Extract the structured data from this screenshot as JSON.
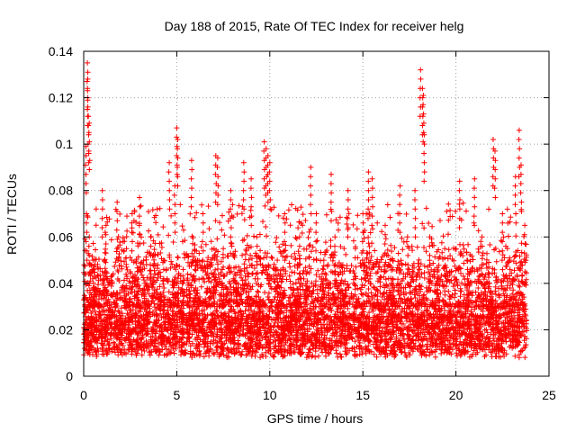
{
  "chart_data": {
    "type": "scatter",
    "title": "Day 188 of 2015, Rate Of TEC Index for receiver helg",
    "xlabel": "GPS time / hours",
    "ylabel": "ROTI / TECUs",
    "xlim": [
      0,
      25
    ],
    "ylim": [
      0,
      0.14
    ],
    "xticks": [
      0,
      5,
      10,
      15,
      20,
      25
    ],
    "yticks": [
      0,
      0.02,
      0.04,
      0.06,
      0.08,
      0.1,
      0.12,
      0.14
    ],
    "xtick_labels": [
      "0",
      "5",
      "10",
      "15",
      "20",
      "25"
    ],
    "ytick_labels": [
      "0",
      "0.02",
      "0.04",
      "0.06",
      "0.08",
      "0.1",
      "0.12",
      "0.14"
    ],
    "grid": true,
    "marker": "+",
    "color": "#ff0000",
    "series": [
      {
        "name": "ROTI",
        "x": [
          0.05,
          0.1,
          0.12,
          0.15,
          0.2,
          0.22,
          0.25,
          0.3,
          0.3,
          0.35,
          0.5,
          0.8,
          1.0,
          1.2,
          1.5,
          1.8,
          2.0,
          2.3,
          2.6,
          3.0,
          3.3,
          3.6,
          4.0,
          4.3,
          4.6,
          4.9,
          5.0,
          5.05,
          5.3,
          5.8,
          6.0,
          6.4,
          6.8,
          7.1,
          7.2,
          7.5,
          7.9,
          8.2,
          8.6,
          9.0,
          9.3,
          9.7,
          9.8,
          9.9,
          10.0,
          10.4,
          10.8,
          11.2,
          11.6,
          12.0,
          12.2,
          12.5,
          12.9,
          13.3,
          13.5,
          13.8,
          14.2,
          14.6,
          15.0,
          15.3,
          15.5,
          15.8,
          16.2,
          16.6,
          17.0,
          17.4,
          17.8,
          18.1,
          18.2,
          18.25,
          18.3,
          18.6,
          19.0,
          19.4,
          19.8,
          20.2,
          20.6,
          21.0,
          21.4,
          21.8,
          22.0,
          22.1,
          22.5,
          22.9,
          23.2,
          23.4,
          23.5,
          23.7
        ],
        "y": [
          0.012,
          0.02,
          0.099,
          0.07,
          0.135,
          0.128,
          0.112,
          0.109,
          0.06,
          0.045,
          0.05,
          0.03,
          0.08,
          0.065,
          0.035,
          0.075,
          0.025,
          0.055,
          0.07,
          0.077,
          0.04,
          0.06,
          0.035,
          0.05,
          0.092,
          0.082,
          0.107,
          0.102,
          0.04,
          0.093,
          0.05,
          0.07,
          0.03,
          0.095,
          0.094,
          0.055,
          0.08,
          0.04,
          0.092,
          0.085,
          0.06,
          0.101,
          0.098,
          0.095,
          0.092,
          0.05,
          0.07,
          0.035,
          0.06,
          0.045,
          0.09,
          0.07,
          0.05,
          0.087,
          0.06,
          0.04,
          0.08,
          0.055,
          0.07,
          0.088,
          0.085,
          0.045,
          0.065,
          0.05,
          0.082,
          0.06,
          0.08,
          0.132,
          0.124,
          0.121,
          0.104,
          0.06,
          0.045,
          0.055,
          0.035,
          0.084,
          0.05,
          0.085,
          0.06,
          0.04,
          0.102,
          0.097,
          0.07,
          0.05,
          0.086,
          0.106,
          0.091,
          0.065
        ]
      }
    ],
    "dense_band": {
      "ymin": 0.007,
      "ymax": 0.035,
      "ytypical": 0.017,
      "x_start": 0,
      "x_end": 23.8
    }
  }
}
